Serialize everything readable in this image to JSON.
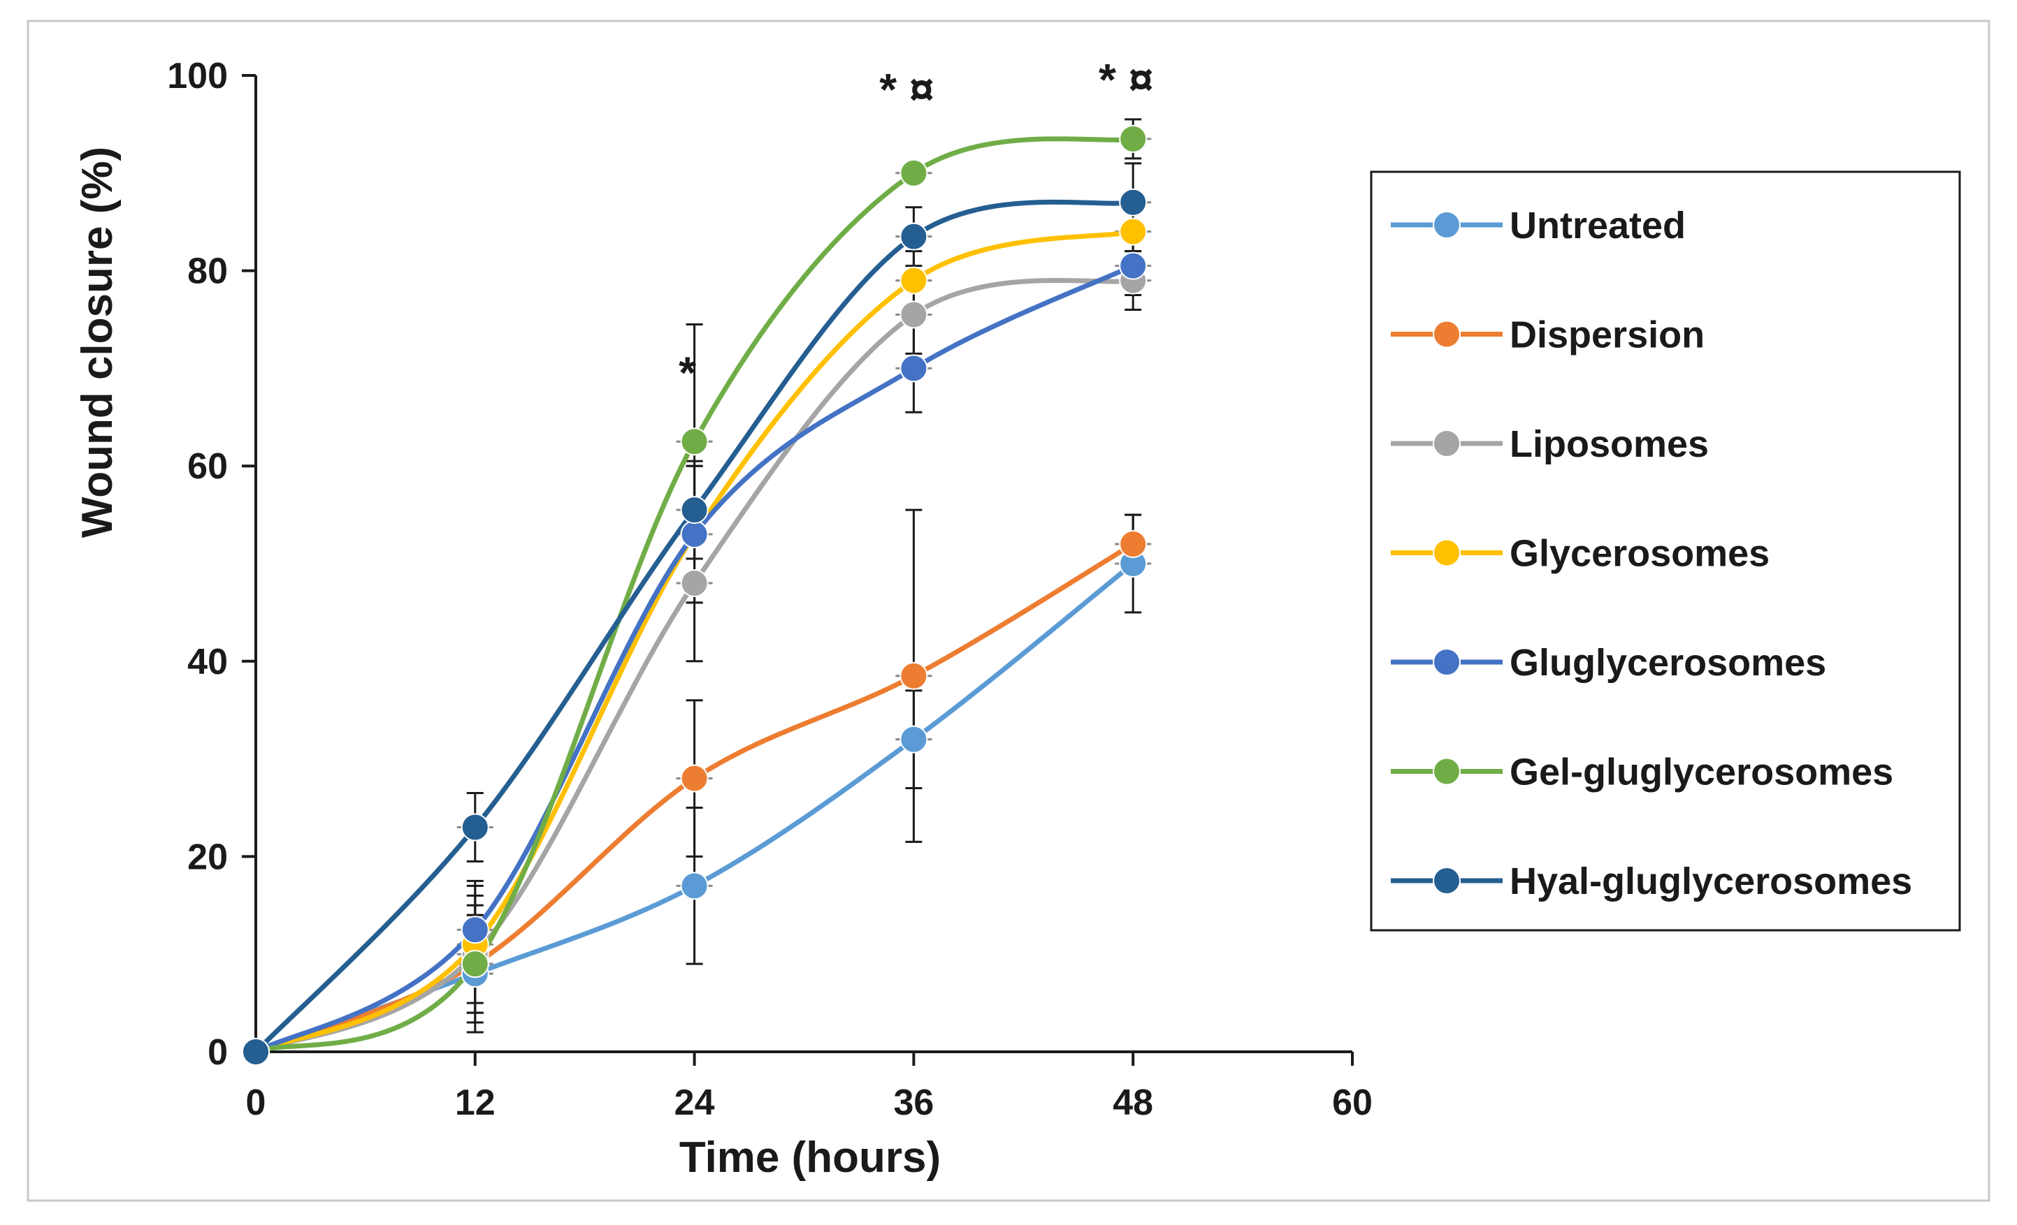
{
  "chart_data": {
    "type": "line",
    "title": "",
    "xlabel": "Time (hours)",
    "ylabel": "Wound closure (%)",
    "xlim": [
      0,
      60
    ],
    "ylim": [
      0,
      100
    ],
    "xticks": [
      0,
      12,
      24,
      36,
      48,
      60
    ],
    "yticks": [
      0,
      20,
      40,
      60,
      80,
      100
    ],
    "x": [
      0,
      12,
      24,
      36,
      48
    ],
    "grid": false,
    "legend_position": "right",
    "series": [
      {
        "name": "Untreated",
        "color": "#5b9bd5",
        "values": [
          0,
          8,
          17,
          32,
          50
        ],
        "errors": [
          0,
          6,
          8,
          5,
          5
        ]
      },
      {
        "name": "Dispersion",
        "color": "#ed7d31",
        "values": [
          0,
          9,
          28,
          38.5,
          52
        ],
        "errors": [
          0,
          5,
          8,
          17,
          3
        ]
      },
      {
        "name": "Liposomes",
        "color": "#a5a5a5",
        "values": [
          0,
          10,
          48,
          75.5,
          79
        ],
        "errors": [
          0,
          6,
          8,
          4,
          3
        ]
      },
      {
        "name": "Glycerosomes",
        "color": "#ffc000",
        "values": [
          0,
          11,
          53,
          79,
          84
        ],
        "errors": [
          0,
          6,
          7,
          3,
          2
        ]
      },
      {
        "name": "Gluglycerosomes",
        "color": "#4472c4",
        "values": [
          0,
          12.5,
          53,
          70,
          80.5
        ],
        "errors": [
          0,
          5,
          7,
          4.5,
          3
        ]
      },
      {
        "name": "Gel-gluglycerosomes",
        "color": "#70ad47",
        "values": [
          0,
          9,
          62.5,
          90,
          93.5
        ],
        "errors": [
          0,
          6,
          12,
          1,
          2
        ]
      },
      {
        "name": "Hyal-gluglycerosomes",
        "color": "#255e91",
        "values": [
          0,
          23,
          55.5,
          83.5,
          87
        ],
        "errors": [
          0,
          3.5,
          5,
          3,
          4
        ]
      }
    ],
    "annotations": [
      {
        "text": "*",
        "x": 24,
        "y": 68
      },
      {
        "text": "* ¤",
        "x": 36,
        "y": 97
      },
      {
        "text": "* ¤",
        "x": 48,
        "y": 98
      }
    ]
  }
}
